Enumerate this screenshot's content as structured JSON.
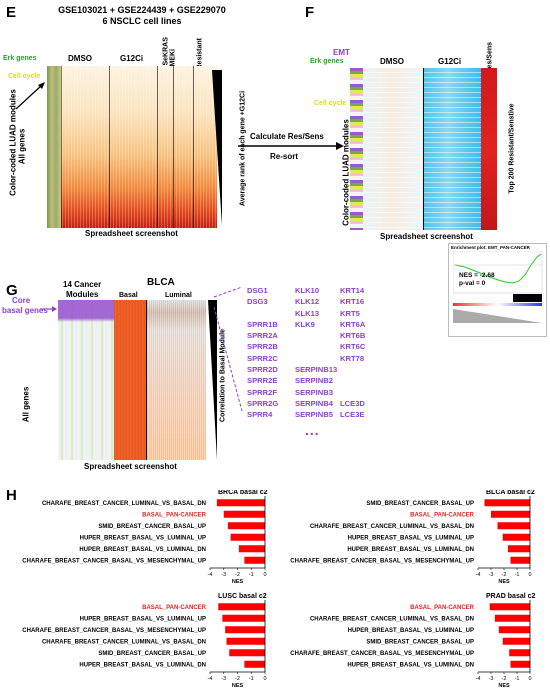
{
  "panelE": {
    "letter": "E",
    "title_line1": "GSE103021 + GSE224439 + GSE229070",
    "title_line2": "6 NSCLC cell lines",
    "col_dmso": "DMSO",
    "col_g12ci": "G12Ci",
    "col_sekras": "SeKRAS",
    "col_mek": "MEKi",
    "col_resistant": "Resistant",
    "label_erk": "Erk genes",
    "label_cell_cycle": "Cell cycle",
    "label_all_genes": "All genes",
    "label_modules": "Color-coded LUAD modules",
    "label_rank": "Average rank of each gene +G12Ci",
    "footer": "Spreadsheet screenshot"
  },
  "arrow": {
    "line1": "Calculate Res/Sens",
    "line2": "Re-sort"
  },
  "panelF": {
    "letter": "F",
    "label_emt": "EMT",
    "label_erk": "Erk genes",
    "label_cell_cycle": "Cell cycle",
    "label_modules": "Color-coded LUAD modules",
    "col_dmso": "DMSO",
    "col_g12ci": "G12Ci",
    "col_ressens": "Res/Sens",
    "label_top": "Top 200 Resistant/Senstive",
    "footer": "Spreadsheet screenshot"
  },
  "inset": {
    "title": "Enrichment plot: EMT_PAN-CANCER",
    "nes": "NES = -2.68",
    "pval": "p-val = 0"
  },
  "panelG": {
    "letter": "G",
    "label_core": "Core",
    "label_basal_genes": "basal genes",
    "label_all_genes": "All genes",
    "col_modules_1": "14 Cancer",
    "col_modules_2": "Modules",
    "col_blca": "BLCA",
    "col_basal": "Basal",
    "col_luminal": "Luminal",
    "label_corr": "Correlation to Basal Module",
    "footer": "Spreadsheet screenshot",
    "genes_col1": [
      "DSG1",
      "DSG3",
      "",
      "SPRR1B",
      "SPRR2A",
      "SPRR2B",
      "SPRR2C",
      "SPRR2D",
      "SPRR2E",
      "SPRR2F",
      "SPRR2G",
      "SPRR4"
    ],
    "genes_col2": [
      "KLK10",
      "KLK12",
      "KLK13",
      "KLK9",
      "",
      "",
      "",
      "SERPINB13",
      "SERPINB2",
      "SERPINB3",
      "SERPINB4",
      "SERPINB5"
    ],
    "genes_col3": [
      "KRT14",
      "KRT16",
      "KRT5",
      "KRT6A",
      "KRT6B",
      "KRT6C",
      "KRT78",
      "",
      "",
      "",
      "LCE3D",
      "LCE3E"
    ],
    "ellipsis": "..."
  },
  "panelH": {
    "letter": "H",
    "axis_label": "NES",
    "ticks": [
      "-4",
      "-3",
      "-2",
      "-1",
      "0"
    ],
    "charts": [
      {
        "title": "BRCA basal c2",
        "rows": [
          {
            "label": "CHARAFE_BREAST_CANCER_LUMINAL_VS_BASAL_DN",
            "nes": -3.5,
            "highlight": false
          },
          {
            "label": "BASAL_PAN-CANCER",
            "nes": -3.0,
            "highlight": true
          },
          {
            "label": "SMID_BREAST_CANCER_BASAL_UP",
            "nes": -2.7,
            "highlight": false
          },
          {
            "label": "HUPER_BREAST_BASAL_VS_LUMINAL_UP",
            "nes": -2.5,
            "highlight": false
          },
          {
            "label": "HUPER_BREAST_BASAL_VS_LUMINAL_DN",
            "nes": -1.9,
            "highlight": false
          },
          {
            "label": "CHARAFE_BREAST_CANCER_BASAL_VS_MESENCHYMAL_UP",
            "nes": -1.5,
            "highlight": false
          }
        ]
      },
      {
        "title": "BLCA basal c2",
        "rows": [
          {
            "label": "SMID_BREAST_CANCER_BASAL_UP",
            "nes": -3.5,
            "highlight": false
          },
          {
            "label": "BASAL_PAN-CANCER",
            "nes": -3.0,
            "highlight": true
          },
          {
            "label": "CHARAFE_BREAST_CANCER_LUMINAL_VS_BASAL_DN",
            "nes": -2.5,
            "highlight": false
          },
          {
            "label": "HUPER_BREAST_BASAL_VS_LUMINAL_UP",
            "nes": -2.1,
            "highlight": false
          },
          {
            "label": "HUPER_BREAST_BASAL_VS_LUMINAL_DN",
            "nes": -1.7,
            "highlight": false
          },
          {
            "label": "CHARAFE_BREAST_CANCER_BASAL_VS_MESENCHYMAL_UP",
            "nes": -1.5,
            "highlight": false
          }
        ]
      },
      {
        "title": "LUSC basal c2",
        "rows": [
          {
            "label": "BASAL_PAN-CANCER",
            "nes": -3.4,
            "highlight": true
          },
          {
            "label": "HUPER_BREAST_BASAL_VS_LUMINAL_UP",
            "nes": -3.1,
            "highlight": false
          },
          {
            "label": "CHARAFE_BREAST_CANCER_BASAL_VS_MESENCHYMAL_UP",
            "nes": -2.9,
            "highlight": false
          },
          {
            "label": "CHARAFE_BREAST_CANCER_LUMINAL_VS_BASAL_DN",
            "nes": -2.8,
            "highlight": false
          },
          {
            "label": "SMID_BREAST_CANCER_BASAL_UP",
            "nes": -2.6,
            "highlight": false
          },
          {
            "label": "HUPER_BREAST_BASAL_VS_LUMINAL_DN",
            "nes": -1.5,
            "highlight": false
          }
        ]
      },
      {
        "title": "PRAD basal c2",
        "rows": [
          {
            "label": "BASAL_PAN-CANCER",
            "nes": -3.1,
            "highlight": true
          },
          {
            "label": "CHARAFE_BREAST_CANCER_LUMINAL_VS_BASAL_DN",
            "nes": -2.7,
            "highlight": false
          },
          {
            "label": "HUPER_BREAST_BASAL_VS_LUMINAL_UP",
            "nes": -2.4,
            "highlight": false
          },
          {
            "label": "SMID_BREAST_CANCER_BASAL_UP",
            "nes": -2.1,
            "highlight": false
          },
          {
            "label": "CHARAFE_BREAST_CANCER_BASAL_VS_MESENCHYMAL_UP",
            "nes": -1.6,
            "highlight": false
          },
          {
            "label": "HUPER_BREAST_BASAL_VS_LUMINAL_DN",
            "nes": -1.5,
            "highlight": false
          }
        ]
      }
    ]
  },
  "colors": {
    "bar": "#ff0000",
    "highlight_text": "#e8231e",
    "purple": "#8a3fd0",
    "erk_green": "#2aa02a",
    "cell_cycle_yellow": "#e8e82a"
  }
}
